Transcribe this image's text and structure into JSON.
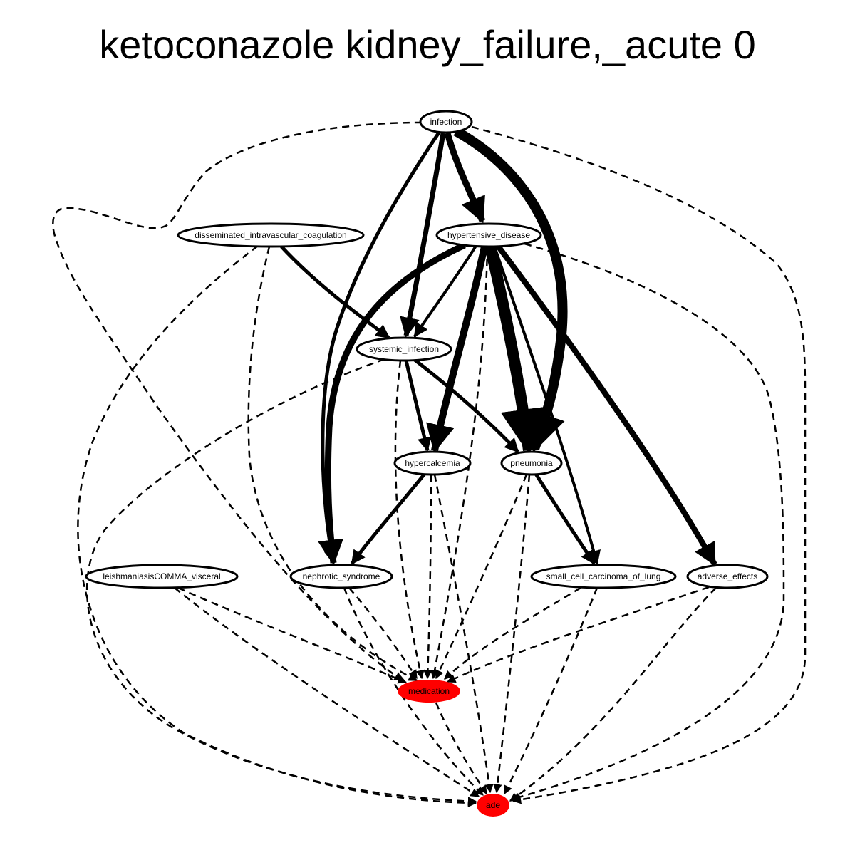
{
  "title": "ketoconazole kidney_failure,_acute 0",
  "nodes": {
    "infection": {
      "label": "infection",
      "fill": "#ffffff"
    },
    "dic": {
      "label": "disseminated_intravascular_coagulation",
      "fill": "#ffffff"
    },
    "hypertensive": {
      "label": "hypertensive_disease",
      "fill": "#ffffff"
    },
    "systemic": {
      "label": "systemic_infection",
      "fill": "#ffffff"
    },
    "hypercalcemia": {
      "label": "hypercalcemia",
      "fill": "#ffffff"
    },
    "pneumonia": {
      "label": "pneumonia",
      "fill": "#ffffff"
    },
    "leish": {
      "label": "leishmaniasisCOMMA_visceral",
      "fill": "#ffffff"
    },
    "nephrotic": {
      "label": "nephrotic_syndrome",
      "fill": "#ffffff"
    },
    "sclc": {
      "label": "small_cell_carcinoma_of_lung",
      "fill": "#ffffff"
    },
    "adverse": {
      "label": "adverse_effects",
      "fill": "#ffffff"
    },
    "medication": {
      "label": "medication",
      "fill": "#ff0000"
    },
    "ade": {
      "label": "ade",
      "fill": "#ff0000"
    }
  },
  "edges": [
    {
      "from": "infection",
      "to": "hypertensive",
      "style": "solid",
      "weight": 9
    },
    {
      "from": "infection",
      "to": "pneumonia",
      "style": "solid",
      "weight": 14
    },
    {
      "from": "infection",
      "to": "systemic",
      "style": "solid",
      "weight": 7
    },
    {
      "from": "infection",
      "to": "nephrotic",
      "style": "solid",
      "weight": 5
    },
    {
      "from": "infection",
      "to": "medication",
      "style": "dashed",
      "weight": 2.5
    },
    {
      "from": "infection",
      "to": "ade",
      "style": "dashed",
      "weight": 2.5
    },
    {
      "from": "dic",
      "to": "systemic",
      "style": "solid",
      "weight": 5
    },
    {
      "from": "dic",
      "to": "medication",
      "style": "dashed",
      "weight": 2.5
    },
    {
      "from": "dic",
      "to": "ade",
      "style": "dashed",
      "weight": 2.5
    },
    {
      "from": "hypertensive",
      "to": "systemic",
      "style": "solid",
      "weight": 4
    },
    {
      "from": "hypertensive",
      "to": "nephrotic",
      "style": "solid",
      "weight": 9
    },
    {
      "from": "hypertensive",
      "to": "hypercalcemia",
      "style": "solid",
      "weight": 10
    },
    {
      "from": "hypertensive",
      "to": "pneumonia",
      "style": "solid",
      "weight": 16
    },
    {
      "from": "hypertensive",
      "to": "sclc",
      "style": "solid",
      "weight": 4
    },
    {
      "from": "hypertensive",
      "to": "adverse",
      "style": "solid",
      "weight": 8
    },
    {
      "from": "hypertensive",
      "to": "medication",
      "style": "dashed",
      "weight": 2.5
    },
    {
      "from": "hypertensive",
      "to": "ade",
      "style": "dashed",
      "weight": 2.5
    },
    {
      "from": "systemic",
      "to": "hypercalcemia",
      "style": "solid",
      "weight": 5
    },
    {
      "from": "systemic",
      "to": "pneumonia",
      "style": "solid",
      "weight": 5
    },
    {
      "from": "systemic",
      "to": "medication",
      "style": "dashed",
      "weight": 2.5
    },
    {
      "from": "systemic",
      "to": "ade",
      "style": "dashed",
      "weight": 2.5
    },
    {
      "from": "hypercalcemia",
      "to": "nephrotic",
      "style": "solid",
      "weight": 5
    },
    {
      "from": "hypercalcemia",
      "to": "medication",
      "style": "dashed",
      "weight": 2.5
    },
    {
      "from": "hypercalcemia",
      "to": "ade",
      "style": "dashed",
      "weight": 2.5
    },
    {
      "from": "pneumonia",
      "to": "sclc",
      "style": "solid",
      "weight": 5
    },
    {
      "from": "pneumonia",
      "to": "medication",
      "style": "dashed",
      "weight": 2.5
    },
    {
      "from": "pneumonia",
      "to": "ade",
      "style": "dashed",
      "weight": 2.5
    },
    {
      "from": "leish",
      "to": "medication",
      "style": "dashed",
      "weight": 2.5
    },
    {
      "from": "leish",
      "to": "ade",
      "style": "dashed",
      "weight": 2.5
    },
    {
      "from": "nephrotic",
      "to": "medication",
      "style": "dashed",
      "weight": 2.5
    },
    {
      "from": "nephrotic",
      "to": "ade",
      "style": "dashed",
      "weight": 2.5
    },
    {
      "from": "sclc",
      "to": "medication",
      "style": "dashed",
      "weight": 2.5
    },
    {
      "from": "sclc",
      "to": "ade",
      "style": "dashed",
      "weight": 2.5
    },
    {
      "from": "adverse",
      "to": "medication",
      "style": "dashed",
      "weight": 2.5
    },
    {
      "from": "adverse",
      "to": "ade",
      "style": "dashed",
      "weight": 2.5
    },
    {
      "from": "medication",
      "to": "ade",
      "style": "dashed",
      "weight": 2.5
    }
  ]
}
